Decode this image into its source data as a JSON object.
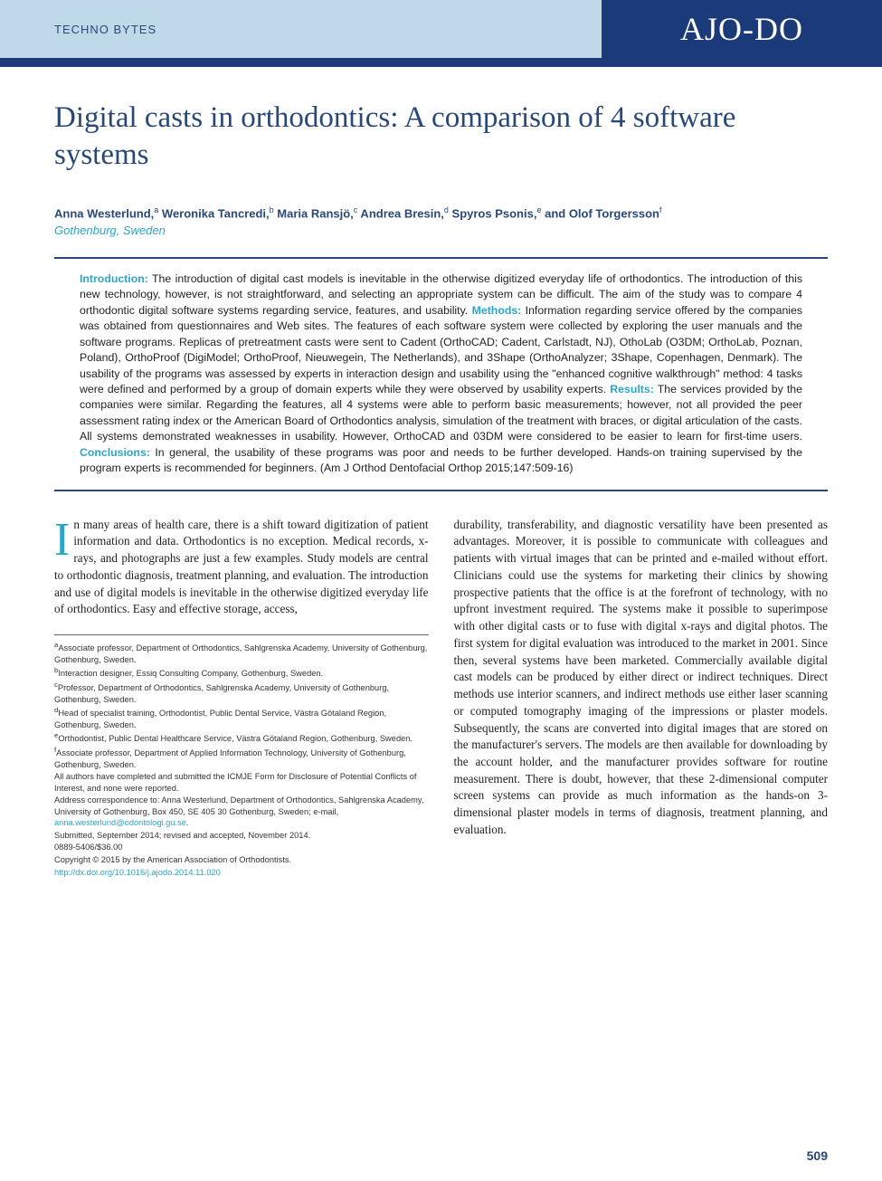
{
  "banner": {
    "section": "TECHNO BYTES",
    "journal": "AJO-DO"
  },
  "title": "Digital casts in orthodontics: A comparison of 4 software systems",
  "authors_html": "Anna Westerlund,<sup>a</sup> Weronika Tancredi,<sup>b</sup> Maria Ransjö,<sup>c</sup> Andrea Bresin,<sup>d</sup> Spyros Psonis,<sup>e</sup> and Olof Torgersson<sup>f</sup>",
  "affiliation_city": "Gothenburg, Sweden",
  "abstract": {
    "intro_label": "Introduction:",
    "intro": " The introduction of digital cast models is inevitable in the otherwise digitized everyday life of orthodontics. The introduction of this new technology, however, is not straightforward, and selecting an appropriate system can be difficult. The aim of the study was to compare 4 orthodontic digital software systems regarding service, features, and usability. ",
    "methods_label": "Methods:",
    "methods": " Information regarding service offered by the companies was obtained from questionnaires and Web sites. The features of each software system were collected by exploring the user manuals and the software programs. Replicas of pretreatment casts were sent to Cadent (OrthoCAD; Cadent, Carlstadt, NJ), OthoLab (O3DM; OrthoLab, Poznan, Poland), OrthoProof (DigiModel; OrthoProof, Nieuwegein, The Netherlands), and 3Shape (OrthoAnalyzer; 3Shape, Copenhagen, Denmark). The usability of the programs was assessed by experts in interaction design and usability using the \"enhanced cognitive walkthrough\" method: 4 tasks were defined and performed by a group of domain experts while they were observed by usability experts. ",
    "results_label": "Results:",
    "results": " The services provided by the companies were similar. Regarding the features, all 4 systems were able to perform basic measurements; however, not all provided the peer assessment rating index or the American Board of Orthodontics analysis, simulation of the treatment with braces, or digital articulation of the casts. All systems demonstrated weaknesses in usability. However, OrthoCAD and 03DM were considered to be easier to learn for first-time users. ",
    "conclusions_label": "Conclusions:",
    "conclusions": " In general, the usability of these programs was poor and needs to be further developed. Hands-on training supervised by the program experts is recommended for beginners. (Am J Orthod Dentofacial Orthop 2015;147:509-16)"
  },
  "body": {
    "col1_dropcap": "I",
    "col1": "n many areas of health care, there is a shift toward digitization of patient information and data. Orthodontics is no exception. Medical records, x-rays, and photographs are just a few examples. Study models are central to orthodontic diagnosis, treatment planning, and evaluation. The introduction and use of digital models is inevitable in the otherwise digitized everyday life of orthodontics. Easy and effective storage, access,",
    "col2": "durability, transferability, and diagnostic versatility have been presented as advantages. Moreover, it is possible to communicate with colleagues and patients with virtual images that can be printed and e-mailed without effort. Clinicians could use the systems for marketing their clinics by showing prospective patients that the office is at the forefront of technology, with no upfront investment required. The systems make it possible to superimpose with other digital casts or to fuse with digital x-rays and digital photos. The first system for digital evaluation was introduced to the market in 2001. Since then, several systems have been marketed. Commercially available digital cast models can be produced by either direct or indirect techniques. Direct methods use interior scanners, and indirect methods use either laser scanning or computed tomography imaging of the impressions or plaster models. Subsequently, the scans are converted into digital images that are stored on the manufacturer's servers. The models are then available for downloading by the account holder, and the manufacturer provides software for routine measurement. There is doubt, however, that these 2-dimensional computer screen systems can provide as much information as the hands-on 3-dimensional plaster models in terms of diagnosis, treatment planning, and evaluation."
  },
  "footnotes": {
    "a": "Associate professor, Department of Orthodontics, Sahlgrenska Academy, University of Gothenburg, Gothenburg, Sweden.",
    "b": "Interaction designer, Essiq Consulting Company, Gothenburg, Sweden.",
    "c": "Professor, Department of Orthodontics, Sahlgrenska Academy, University of Gothenburg, Gothenburg, Sweden.",
    "d": "Head of specialist training, Orthodontist, Public Dental Service, Västra Götaland Region, Gothenburg, Sweden.",
    "e": "Orthodontist, Public Dental Healthcare Service, Västra Götaland Region, Gothenburg, Sweden.",
    "f": "Associate professor, Department of Applied Information Technology, University of Gothenburg, Gothenburg, Sweden.",
    "disclosure": "All authors have completed and submitted the ICMJE Form for Disclosure of Potential Conflicts of Interest, and none were reported.",
    "correspondence_pre": "Address correspondence to: Anna Westerlund, Department of Orthodontics, Sahlgrenska Academy, University of Gothenburg, Box 450, SE 405 30 Gothenburg, Sweden; e-mail, ",
    "correspondence_email": "anna.westerlund@odontologi.gu.se",
    "correspondence_post": ".",
    "submitted": "Submitted, September 2014; revised and accepted, November 2014.",
    "issn": "0889-5406/$36.00",
    "copyright": "Copyright © 2015 by the American Association of Orthodontists.",
    "doi": "http://dx.doi.org/10.1016/j.ajodo.2014.11.020"
  },
  "page_number": "509",
  "colors": {
    "banner_light": "#c0d9e8",
    "banner_dark": "#1a3a7a",
    "heading_blue": "#28487a",
    "accent_teal": "#2da5c7"
  }
}
